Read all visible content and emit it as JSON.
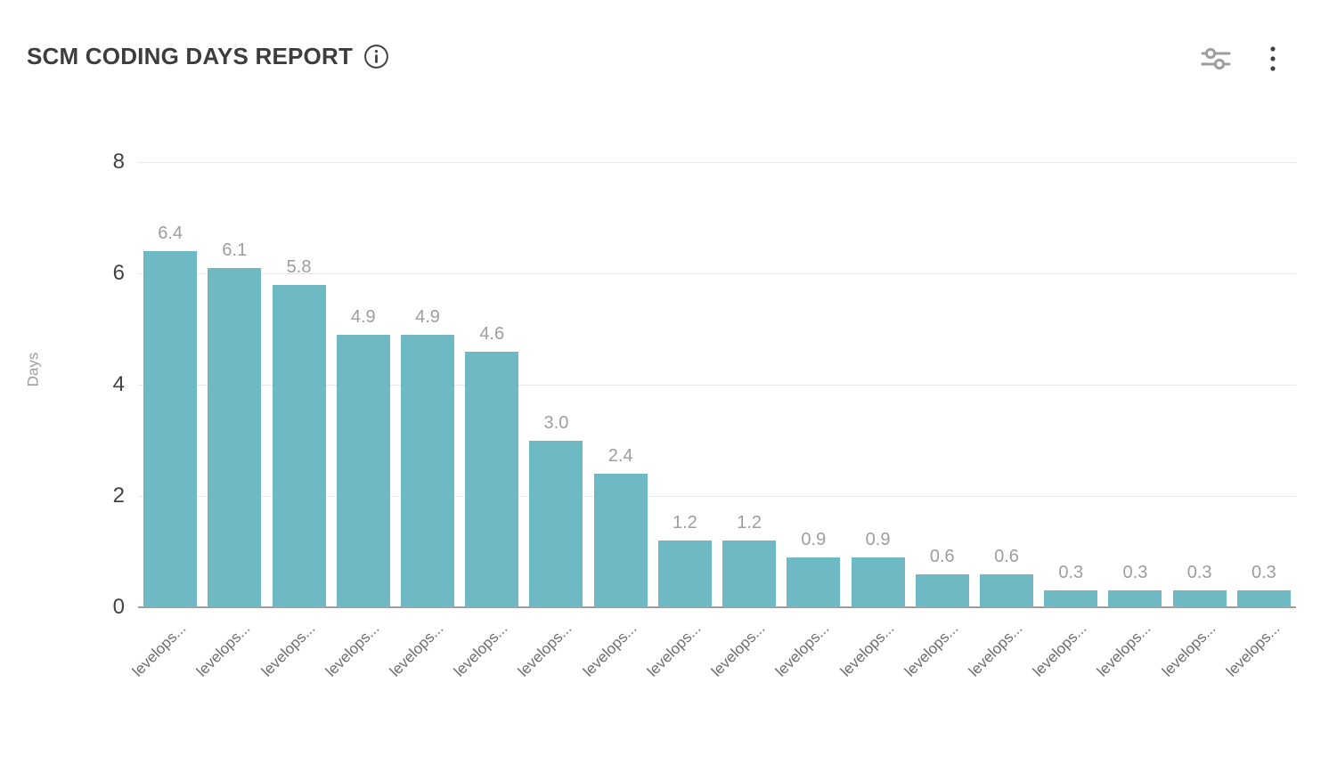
{
  "header": {
    "title": "SCM CODING DAYS REPORT",
    "info_icon": "info-icon",
    "filter_icon": "sliders-icon",
    "menu_icon": "kebab-menu-icon"
  },
  "colors": {
    "bar": "#6fb9c4",
    "grid": "#e8e8e8",
    "axis": "#9e9e9e",
    "tick_text": "#424242",
    "value_label_text": "#9e9e9e",
    "x_label_text": "#6e6e6e",
    "title_text": "#3d3d3d"
  },
  "chart_data": {
    "type": "bar",
    "title": "SCM CODING DAYS REPORT",
    "xlabel": "",
    "ylabel": "Days",
    "ylim": [
      0,
      8
    ],
    "yticks": [
      0,
      2,
      4,
      6,
      8
    ],
    "grid": true,
    "legend": false,
    "bar_color": "#6fb9c4",
    "categories": [
      "levelops...",
      "levelops...",
      "levelops...",
      "levelops...",
      "levelops...",
      "levelops...",
      "levelops...",
      "levelops...",
      "levelops...",
      "levelops...",
      "levelops...",
      "levelops...",
      "levelops...",
      "levelops...",
      "levelops...",
      "levelops...",
      "levelops...",
      "levelops..."
    ],
    "values": [
      6.4,
      6.1,
      5.8,
      4.9,
      4.9,
      4.6,
      3.0,
      2.4,
      1.2,
      1.2,
      0.9,
      0.9,
      0.6,
      0.6,
      0.3,
      0.3,
      0.3,
      0.3
    ],
    "value_labels": [
      "6.4",
      "6.1",
      "5.8",
      "4.9",
      "4.9",
      "4.6",
      "3.0",
      "2.4",
      "1.2",
      "1.2",
      "0.9",
      "0.9",
      "0.6",
      "0.6",
      "0.3",
      "0.3",
      "0.3",
      "0.3"
    ]
  }
}
